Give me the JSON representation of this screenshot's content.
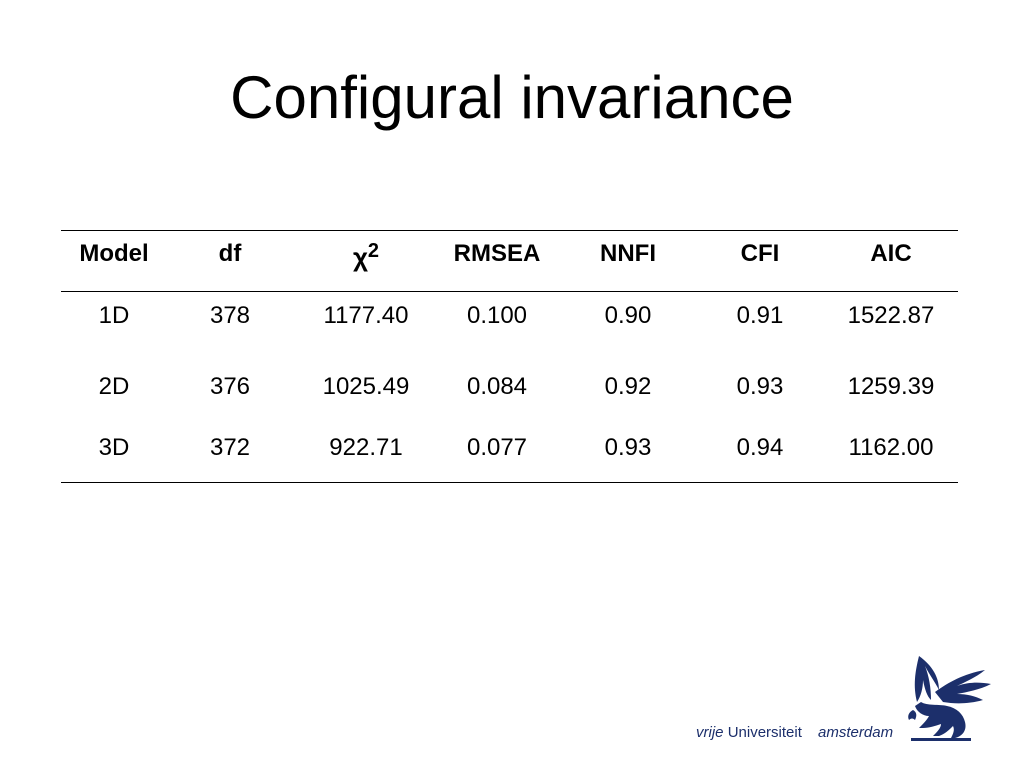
{
  "title": "Configural invariance",
  "table": {
    "headers": [
      "Model",
      "df",
      "χ",
      "RMSEA",
      "NNFI",
      "CFI",
      "AIC"
    ],
    "chi_superscript": "2",
    "rows": [
      [
        "1D",
        "378",
        "1177.40",
        "0.100",
        "0.90",
        "0.91",
        "1522.87"
      ],
      [
        "2D",
        "376",
        "1025.49",
        "0.084",
        "0.92",
        "0.93",
        "1259.39"
      ],
      [
        "3D",
        "372",
        "922.71",
        "0.077",
        "0.93",
        "0.94",
        "1162.00"
      ]
    ]
  },
  "logo": {
    "word1": "vrije",
    "word2": "Universiteit",
    "word3": "amsterdam",
    "color": "#1c2f6b",
    "icon": "griffin-logo-icon"
  }
}
